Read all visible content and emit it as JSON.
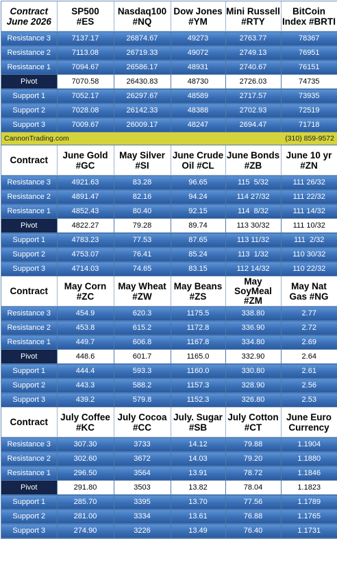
{
  "brand": {
    "name": "CannonTrading.com",
    "phone": "(310) 859-9572"
  },
  "sections": [
    {
      "header": [
        "Contract\nJune 2026",
        "SP500\n#ES",
        "Nasdaq100\n#NQ",
        "Dow Jones\n#YM",
        "Mini Russell\n#RTY",
        "BitCoin\nIndex #BRTI"
      ],
      "rows": [
        [
          "Resistance 3",
          "7137.17",
          "26874.67",
          "49273",
          "2763.77",
          "78367"
        ],
        [
          "Resistance 2",
          "7113.08",
          "26719.33",
          "49072",
          "2749.13",
          "76951"
        ],
        [
          "Resistance 1",
          "7094.67",
          "26586.17",
          "48931",
          "2740.67",
          "76151"
        ],
        [
          "Pivot",
          "7070.58",
          "26430.83",
          "48730",
          "2726.03",
          "74735"
        ],
        [
          "Support 1",
          "7052.17",
          "26297.67",
          "48589",
          "2717.57",
          "73935"
        ],
        [
          "Support 2",
          "7028.08",
          "26142.33",
          "48388",
          "2702.93",
          "72519"
        ],
        [
          "Support 3",
          "7009.67",
          "26009.17",
          "48247",
          "2694.47",
          "71718"
        ]
      ]
    },
    {
      "header": [
        "Contract",
        "June Gold\n#GC",
        "May Silver\n#SI",
        "June Crude\nOil #CL",
        "June Bonds\n#ZB",
        "June 10 yr\n#ZN"
      ],
      "rows": [
        [
          "Resistance 3",
          "4921.63",
          "83.28",
          "96.65",
          "115  5/32",
          "111 26/32"
        ],
        [
          "Resistance 2",
          "4891.47",
          "82.16",
          "94.24",
          "114 27/32",
          "111 22/32"
        ],
        [
          "Resistance 1",
          "4852.43",
          "80.40",
          "92.15",
          "114  8/32",
          "111 14/32"
        ],
        [
          "Pivot",
          "4822.27",
          "79.28",
          "89.74",
          "113 30/32",
          "111 10/32"
        ],
        [
          "Support 1",
          "4783.23",
          "77.53",
          "87.65",
          "113 11/32",
          "111  2/32"
        ],
        [
          "Support 2",
          "4753.07",
          "76.41",
          "85.24",
          "113  1/32",
          "110 30/32"
        ],
        [
          "Support 3",
          "4714.03",
          "74.65",
          "83.15",
          "112 14/32",
          "110 22/32"
        ]
      ]
    },
    {
      "header": [
        "Contract",
        "May Corn\n#ZC",
        "May  Wheat\n#ZW",
        "May Beans\n#ZS",
        "May\nSoyMeal\n#ZM",
        "May Nat\nGas #NG"
      ],
      "rows": [
        [
          "Resistance 3",
          "454.9",
          "620.3",
          "1175.5",
          "338.80",
          "2.77"
        ],
        [
          "Resistance 2",
          "453.8",
          "615.2",
          "1172.8",
          "336.90",
          "2.72"
        ],
        [
          "Resistance 1",
          "449.7",
          "606.8",
          "1167.8",
          "334.80",
          "2.69"
        ],
        [
          "Pivot",
          "448.6",
          "601.7",
          "1165.0",
          "332.90",
          "2.64"
        ],
        [
          "Support 1",
          "444.4",
          "593.3",
          "1160.0",
          "330.80",
          "2.61"
        ],
        [
          "Support 2",
          "443.3",
          "588.2",
          "1157.3",
          "328.90",
          "2.56"
        ],
        [
          "Support 3",
          "439.2",
          "579.8",
          "1152.3",
          "326.80",
          "2.53"
        ]
      ]
    },
    {
      "header": [
        "Contract",
        "July Coffee\n#KC",
        "July Cocoa\n#CC",
        "July. Sugar\n#SB",
        "July Cotton\n#CT",
        "June Euro\nCurrency"
      ],
      "rows": [
        [
          "Resistance 3",
          "307.30",
          "3733",
          "14.12",
          "79.88",
          "1.1904"
        ],
        [
          "Resistance 2",
          "302.60",
          "3672",
          "14.03",
          "79.20",
          "1.1880"
        ],
        [
          "Resistance 1",
          "296.50",
          "3564",
          "13.91",
          "78.72",
          "1.1846"
        ],
        [
          "Pivot",
          "291.80",
          "3503",
          "13.82",
          "78.04",
          "1.1823"
        ],
        [
          "Support 1",
          "285.70",
          "3395",
          "13.70",
          "77.56",
          "1.1789"
        ],
        [
          "Support 2",
          "281.00",
          "3334",
          "13.61",
          "76.88",
          "1.1765"
        ],
        [
          "Support 3",
          "274.90",
          "3226",
          "13.49",
          "76.40",
          "1.1731"
        ]
      ]
    }
  ]
}
